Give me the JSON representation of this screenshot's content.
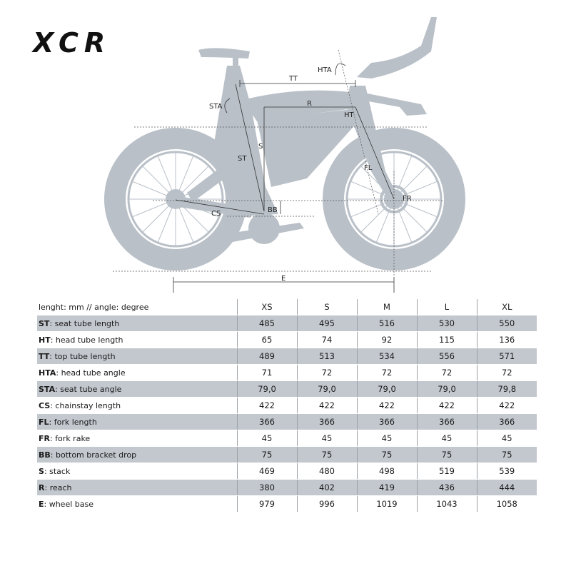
{
  "brand": {
    "logo_text": "XCR"
  },
  "diagram": {
    "labels": {
      "tt": "TT",
      "hta": "HTA",
      "sta": "STA",
      "r": "R",
      "ht": "HT",
      "s": "S",
      "st": "ST",
      "fl": "FL",
      "fr": "FR",
      "bb": "BB",
      "cs": "CS",
      "e": "E"
    }
  },
  "table": {
    "units_label": "lenght: mm // angle: degree",
    "sizes": [
      "XS",
      "S",
      "M",
      "L",
      "XL"
    ],
    "rows": [
      {
        "code": "ST",
        "name": "seat tube length",
        "values": [
          "485",
          "495",
          "516",
          "530",
          "550"
        ]
      },
      {
        "code": "HT",
        "name": "head tube length",
        "values": [
          "65",
          "74",
          "92",
          "115",
          "136"
        ]
      },
      {
        "code": "TT",
        "name": "top tube length",
        "values": [
          "489",
          "513",
          "534",
          "556",
          "571"
        ]
      },
      {
        "code": "HTA",
        "name": "head tube angle",
        "values": [
          "71",
          "72",
          "72",
          "72",
          "72"
        ]
      },
      {
        "code": "STA",
        "name": "seat tube angle",
        "values": [
          "79,0",
          "79,0",
          "79,0",
          "79,0",
          "79,8"
        ]
      },
      {
        "code": "CS",
        "name": "chainstay length",
        "values": [
          "422",
          "422",
          "422",
          "422",
          "422"
        ]
      },
      {
        "code": "FL",
        "name": "fork length",
        "values": [
          "366",
          "366",
          "366",
          "366",
          "366"
        ]
      },
      {
        "code": "FR",
        "name": "fork rake",
        "values": [
          "45",
          "45",
          "45",
          "45",
          "45"
        ]
      },
      {
        "code": "BB",
        "name": "bottom bracket drop",
        "values": [
          "75",
          "75",
          "75",
          "75",
          "75"
        ]
      },
      {
        "code": "S",
        "name": "stack",
        "values": [
          "469",
          "480",
          "498",
          "519",
          "539"
        ]
      },
      {
        "code": "R",
        "name": "reach",
        "values": [
          "380",
          "402",
          "419",
          "436",
          "444"
        ]
      },
      {
        "code": "E",
        "name": "wheel base",
        "values": [
          "979",
          "996",
          "1019",
          "1043",
          "1058"
        ]
      }
    ]
  }
}
